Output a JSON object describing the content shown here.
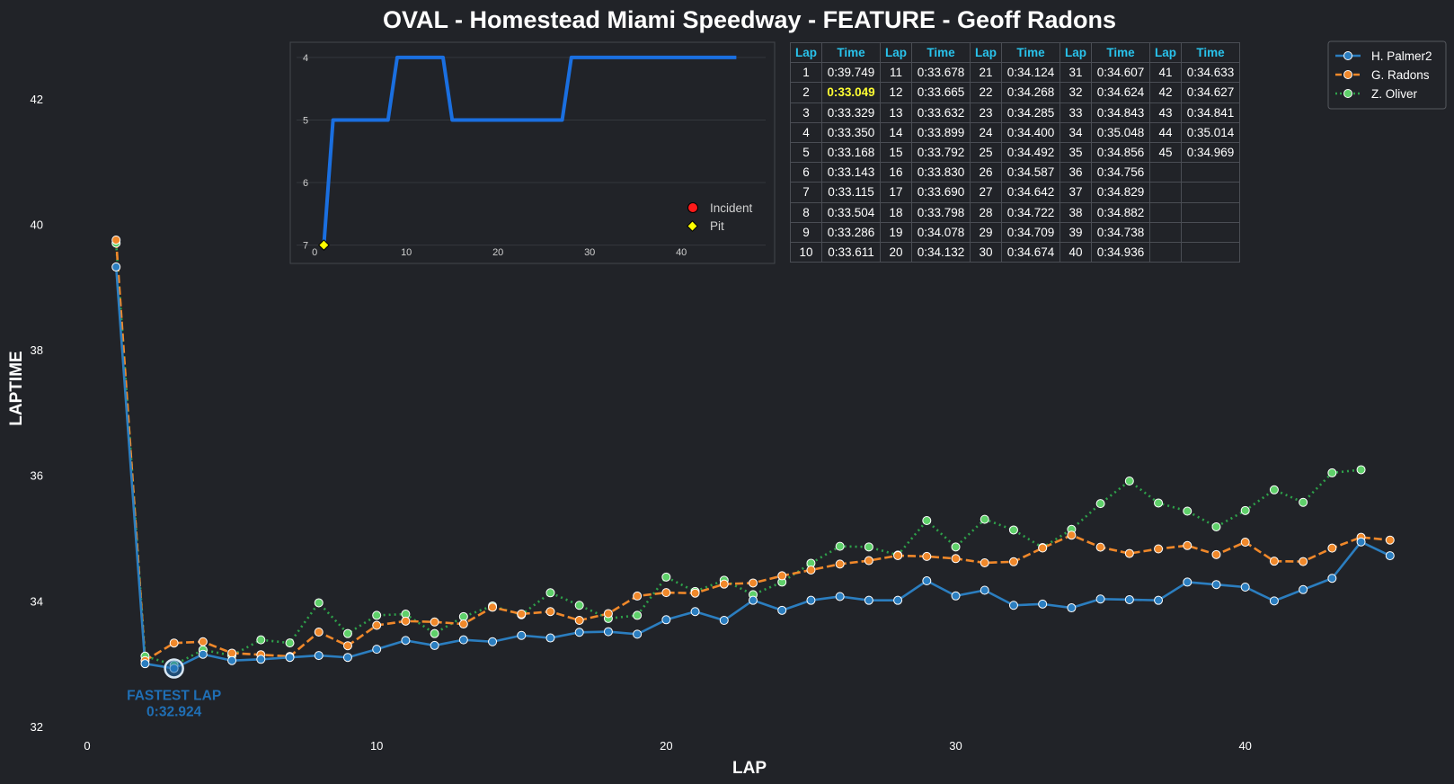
{
  "title": "OVAL - Homestead Miami Speedway - FEATURE - Geoff Radons",
  "colors": {
    "background": "#212328",
    "palmer": "#2b7ec0",
    "radons": "#f0882a",
    "oliver": "#2ea24a",
    "fastest": "#1f6fb5",
    "position_line": "#1a6fe0",
    "table_header": "#29c3ec",
    "best_time": "#ffff33"
  },
  "chart_data": [
    {
      "type": "line",
      "xlabel": "LAP",
      "ylabel": "LAPTIME",
      "xlim": [
        0,
        46
      ],
      "ylim": [
        32,
        43
      ],
      "xticks": [
        0,
        10,
        20,
        30,
        40
      ],
      "yticks": [
        32,
        34,
        36,
        38,
        40,
        42
      ],
      "grid": false,
      "legend_position": "top-right",
      "series": [
        {
          "name": "H. Palmer2",
          "style": "solid",
          "x": [
            1,
            2,
            3,
            4,
            5,
            6,
            7,
            8,
            9,
            10,
            11,
            12,
            13,
            14,
            15,
            16,
            17,
            18,
            19,
            20,
            21,
            22,
            23,
            24,
            25,
            26,
            27,
            28,
            29,
            30,
            31,
            32,
            33,
            34,
            35,
            36,
            37,
            38,
            39,
            40,
            41,
            42,
            43,
            44,
            45
          ],
          "values": [
            39.32,
            33.0,
            32.924,
            33.15,
            33.05,
            33.07,
            33.1,
            33.13,
            33.1,
            33.23,
            33.37,
            33.29,
            33.38,
            33.35,
            33.45,
            33.41,
            33.5,
            33.51,
            33.47,
            33.7,
            33.83,
            33.69,
            34.01,
            33.85,
            34.01,
            34.07,
            34.01,
            34.01,
            34.32,
            34.08,
            34.17,
            33.93,
            33.95,
            33.89,
            34.03,
            34.02,
            34.01,
            34.3,
            34.26,
            34.22,
            34.0,
            34.18,
            34.36,
            34.94,
            34.72
          ]
        },
        {
          "name": "G. Radons",
          "style": "dashed",
          "x": [
            1,
            2,
            3,
            4,
            5,
            6,
            7,
            8,
            9,
            10,
            11,
            12,
            13,
            14,
            15,
            16,
            17,
            18,
            19,
            20,
            21,
            22,
            23,
            24,
            25,
            26,
            27,
            28,
            29,
            30,
            31,
            32,
            33,
            34,
            35,
            36,
            37,
            38,
            39,
            40,
            41,
            42,
            43,
            44,
            45
          ],
          "values": [
            39.749,
            33.049,
            33.329,
            33.35,
            33.168,
            33.143,
            33.115,
            33.504,
            33.286,
            33.611,
            33.678,
            33.665,
            33.632,
            33.899,
            33.792,
            33.83,
            33.69,
            33.798,
            34.078,
            34.132,
            34.124,
            34.268,
            34.285,
            34.4,
            34.492,
            34.587,
            34.642,
            34.722,
            34.709,
            34.674,
            34.607,
            34.624,
            34.843,
            35.048,
            34.856,
            34.756,
            34.829,
            34.882,
            34.738,
            34.936,
            34.633,
            34.627,
            34.841,
            35.014,
            34.969
          ]
        },
        {
          "name": "Z. Oliver",
          "style": "dotted",
          "x": [
            1,
            2,
            3,
            4,
            5,
            6,
            7,
            8,
            9,
            10,
            11,
            12,
            13,
            14,
            15,
            16,
            17,
            18,
            19,
            20,
            21,
            22,
            23,
            24,
            25,
            26,
            27,
            28,
            29,
            30,
            31,
            32,
            33,
            34,
            35,
            36,
            37,
            38,
            39,
            40,
            41,
            42,
            43,
            44
          ],
          "values": [
            39.7,
            33.12,
            32.98,
            33.22,
            33.13,
            33.38,
            33.33,
            33.97,
            33.48,
            33.77,
            33.79,
            33.48,
            33.75,
            33.92,
            33.78,
            34.13,
            33.93,
            33.72,
            33.77,
            34.38,
            34.15,
            34.33,
            34.1,
            34.3,
            34.6,
            34.87,
            34.86,
            34.73,
            35.28,
            34.86,
            35.3,
            35.13,
            34.85,
            35.14,
            35.55,
            35.91,
            35.56,
            35.43,
            35.18,
            35.44,
            35.77,
            35.57,
            36.04,
            36.09
          ]
        }
      ],
      "annotations": [
        {
          "x": 3,
          "y": 32.924,
          "label": "FASTEST LAP",
          "value": "0:32.924"
        }
      ]
    },
    {
      "type": "line",
      "title": "",
      "xlim": [
        -1,
        49
      ],
      "ylim": [
        7.25,
        3.8
      ],
      "xticks": [
        0,
        10,
        20,
        30,
        40
      ],
      "yticks": [
        4,
        5,
        6,
        7
      ],
      "grid": true,
      "legend": [
        "Incident",
        "Pit"
      ],
      "legend_position": "bottom-right",
      "series": [
        {
          "name": "Position",
          "x": [
            1,
            2,
            3,
            4,
            5,
            6,
            7,
            8,
            9,
            10,
            11,
            12,
            13,
            14,
            15,
            16,
            17,
            18,
            19,
            20,
            21,
            22,
            23,
            24,
            25,
            26,
            27,
            28,
            29,
            30,
            31,
            32,
            33,
            34,
            35,
            36,
            37,
            38,
            39,
            40,
            41,
            42,
            43,
            44,
            45,
            46
          ],
          "values": [
            7,
            5,
            5,
            5,
            5,
            5,
            5,
            5,
            4,
            4,
            4,
            4,
            4,
            4,
            5,
            5,
            5,
            5,
            5,
            5,
            5,
            5,
            5,
            5,
            5,
            5,
            5,
            4,
            4,
            4,
            4,
            4,
            4,
            4,
            4,
            4,
            4,
            4,
            4,
            4,
            4,
            4,
            4,
            4,
            4,
            4
          ]
        }
      ],
      "markers": [
        {
          "type": "Pit",
          "x": 1,
          "y": 7
        }
      ]
    }
  ],
  "lap_table": {
    "headers": [
      "Lap",
      "Time"
    ],
    "best_time": "0:33.049",
    "laps": [
      [
        "1",
        "0:39.749"
      ],
      [
        "2",
        "0:33.049"
      ],
      [
        "3",
        "0:33.329"
      ],
      [
        "4",
        "0:33.350"
      ],
      [
        "5",
        "0:33.168"
      ],
      [
        "6",
        "0:33.143"
      ],
      [
        "7",
        "0:33.115"
      ],
      [
        "8",
        "0:33.504"
      ],
      [
        "9",
        "0:33.286"
      ],
      [
        "10",
        "0:33.611"
      ],
      [
        "11",
        "0:33.678"
      ],
      [
        "12",
        "0:33.665"
      ],
      [
        "13",
        "0:33.632"
      ],
      [
        "14",
        "0:33.899"
      ],
      [
        "15",
        "0:33.792"
      ],
      [
        "16",
        "0:33.830"
      ],
      [
        "17",
        "0:33.690"
      ],
      [
        "18",
        "0:33.798"
      ],
      [
        "19",
        "0:34.078"
      ],
      [
        "20",
        "0:34.132"
      ],
      [
        "21",
        "0:34.124"
      ],
      [
        "22",
        "0:34.268"
      ],
      [
        "23",
        "0:34.285"
      ],
      [
        "24",
        "0:34.400"
      ],
      [
        "25",
        "0:34.492"
      ],
      [
        "26",
        "0:34.587"
      ],
      [
        "27",
        "0:34.642"
      ],
      [
        "28",
        "0:34.722"
      ],
      [
        "29",
        "0:34.709"
      ],
      [
        "30",
        "0:34.674"
      ],
      [
        "31",
        "0:34.607"
      ],
      [
        "32",
        "0:34.624"
      ],
      [
        "33",
        "0:34.843"
      ],
      [
        "34",
        "0:35.048"
      ],
      [
        "35",
        "0:34.856"
      ],
      [
        "36",
        "0:34.756"
      ],
      [
        "37",
        "0:34.829"
      ],
      [
        "38",
        "0:34.882"
      ],
      [
        "39",
        "0:34.738"
      ],
      [
        "40",
        "0:34.936"
      ],
      [
        "41",
        "0:34.633"
      ],
      [
        "42",
        "0:34.627"
      ],
      [
        "43",
        "0:34.841"
      ],
      [
        "44",
        "0:35.014"
      ],
      [
        "45",
        "0:34.969"
      ]
    ]
  }
}
